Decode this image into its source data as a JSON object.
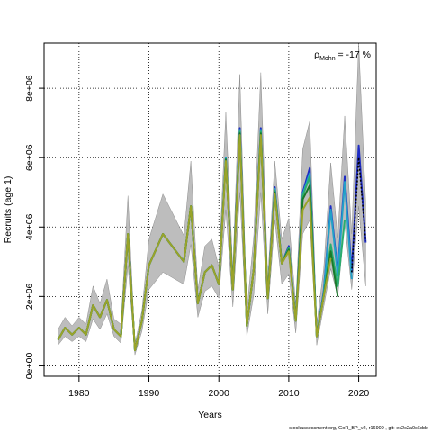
{
  "chart_data": {
    "type": "line",
    "title": "",
    "xlabel": "Years",
    "ylabel": "Recruits (age 1)",
    "xlim": [
      1975,
      2022.5
    ],
    "ylim": [
      -300000,
      9300000
    ],
    "x_ticks": [
      1980,
      1990,
      2000,
      2010,
      2020
    ],
    "y_ticks": [
      0,
      2000000,
      4000000,
      6000000,
      8000000
    ],
    "y_tick_labels": [
      "0e+00",
      "2e+06",
      "4e+06",
      "6e+06",
      "8e+06"
    ],
    "grid": true,
    "annotation": {
      "prefix": "ρ",
      "subscript": "Mohn",
      "suffix": " = -17 %"
    },
    "footer": "stockassessment.org, GoR_BP_v2, r16909 , git: ec2c2a0c6dde",
    "ci_band": {
      "years": [
        1977,
        1978,
        1979,
        1980,
        1981,
        1982,
        1983,
        1984,
        1985,
        1986,
        1987,
        1988,
        1989,
        1990,
        1992,
        1995,
        1996,
        1997,
        1998,
        1999,
        2000,
        2001,
        2002,
        2003,
        2004,
        2005,
        2006,
        2007,
        2008,
        2009,
        2010,
        2011,
        2012,
        2013,
        2014,
        2015,
        2016,
        2017,
        2018,
        2019,
        2020,
        2021
      ],
      "lower": [
        600000,
        850000,
        700000,
        850000,
        700000,
        1350000,
        1050000,
        1500000,
        850000,
        650000,
        2900000,
        320000,
        1000000,
        2200000,
        2700000,
        2350000,
        3500000,
        1400000,
        2150000,
        2300000,
        1950000,
        4500000,
        1700000,
        5000000,
        850000,
        2050000,
        5000000,
        1500000,
        4200000,
        2350000,
        2650000,
        950000,
        3800000,
        4200000,
        600000,
        1700000,
        2800000,
        2000000,
        4100000,
        2200000,
        4600000,
        2300000
      ],
      "upper": [
        1050000,
        1400000,
        1150000,
        1400000,
        1200000,
        2300000,
        1800000,
        2500000,
        1350000,
        1200000,
        4900000,
        620000,
        1600000,
        3650000,
        4950000,
        3750000,
        5900000,
        2200000,
        3450000,
        3650000,
        2850000,
        7300000,
        2750000,
        8400000,
        1550000,
        3750000,
        8450000,
        2500000,
        5900000,
        3650000,
        4250000,
        1750000,
        6250000,
        7050000,
        1200000,
        2800000,
        5850000,
        3700000,
        7200000,
        3800000,
        9300000,
        4700000
      ]
    },
    "series": [
      {
        "color": "#1f2cc4",
        "x": [
          1977,
          1978,
          1979,
          1980,
          1981,
          1982,
          1983,
          1984,
          1985,
          1986,
          1987,
          1988,
          1989,
          1990,
          1992,
          1995,
          1996,
          1997,
          1998,
          1999,
          2000,
          2001,
          2002,
          2003,
          2004,
          2005,
          2006,
          2007,
          2008,
          2009,
          2010,
          2011,
          2012,
          2013,
          2014,
          2015,
          2016,
          2017,
          2018,
          2019,
          2020,
          2021
        ],
        "y": [
          750000,
          1100000,
          900000,
          1100000,
          900000,
          1750000,
          1400000,
          1900000,
          1050000,
          850000,
          3800000,
          450000,
          1300000,
          2900000,
          3800000,
          3000000,
          4600000,
          1800000,
          2700000,
          2900000,
          2350000,
          6000000,
          2200000,
          6850000,
          1150000,
          2800000,
          6850000,
          1950000,
          5150000,
          2950000,
          3450000,
          1300000,
          5000000,
          5700000,
          850000,
          2150000,
          4600000,
          2700000,
          5450000,
          2700000,
          6350000,
          3550000
        ]
      },
      {
        "color": "#22a0c8",
        "x": [
          1977,
          1978,
          1979,
          1980,
          1981,
          1982,
          1983,
          1984,
          1985,
          1986,
          1987,
          1988,
          1989,
          1990,
          1992,
          1995,
          1996,
          1997,
          1998,
          1999,
          2000,
          2001,
          2002,
          2003,
          2004,
          2005,
          2006,
          2007,
          2008,
          2009,
          2010,
          2011,
          2012,
          2013,
          2014,
          2015,
          2016,
          2017,
          2018,
          2019
        ],
        "y": [
          750000,
          1100000,
          900000,
          1100000,
          900000,
          1750000,
          1400000,
          1900000,
          1050000,
          850000,
          3800000,
          450000,
          1300000,
          2900000,
          3800000,
          3000000,
          4600000,
          1800000,
          2700000,
          2900000,
          2350000,
          6000000,
          2200000,
          6800000,
          1150000,
          2800000,
          6800000,
          1950000,
          5100000,
          2950000,
          3400000,
          1300000,
          4950000,
          5550000,
          850000,
          2100000,
          4500000,
          2600000,
          5300000,
          2500000
        ]
      },
      {
        "color": "#2aae6e",
        "x": [
          1977,
          1978,
          1979,
          1980,
          1981,
          1982,
          1983,
          1984,
          1985,
          1986,
          1987,
          1988,
          1989,
          1990,
          1992,
          1995,
          1996,
          1997,
          1998,
          1999,
          2000,
          2001,
          2002,
          2003,
          2004,
          2005,
          2006,
          2007,
          2008,
          2009,
          2010,
          2011,
          2012,
          2013,
          2014,
          2015,
          2016,
          2017,
          2018
        ],
        "y": [
          750000,
          1100000,
          900000,
          1100000,
          900000,
          1750000,
          1400000,
          1900000,
          1050000,
          850000,
          3800000,
          450000,
          1300000,
          2900000,
          3800000,
          3000000,
          4600000,
          1800000,
          2700000,
          2900000,
          2350000,
          5950000,
          2200000,
          6750000,
          1150000,
          2800000,
          6750000,
          1950000,
          5050000,
          2950000,
          3400000,
          1300000,
          4900000,
          5450000,
          850000,
          2050000,
          3500000,
          2300000,
          4200000
        ]
      },
      {
        "color": "#1a7a2a",
        "x": [
          1977,
          1978,
          1979,
          1980,
          1981,
          1982,
          1983,
          1984,
          1985,
          1986,
          1987,
          1988,
          1989,
          1990,
          1992,
          1995,
          1996,
          1997,
          1998,
          1999,
          2000,
          2001,
          2002,
          2003,
          2004,
          2005,
          2006,
          2007,
          2008,
          2009,
          2010,
          2011,
          2012,
          2013,
          2014,
          2015,
          2016,
          2017
        ],
        "y": [
          750000,
          1100000,
          900000,
          1100000,
          900000,
          1750000,
          1400000,
          1900000,
          1050000,
          850000,
          3800000,
          450000,
          1300000,
          2900000,
          3800000,
          3000000,
          4600000,
          1800000,
          2700000,
          2900000,
          2350000,
          5950000,
          2200000,
          6700000,
          1150000,
          2800000,
          6700000,
          1950000,
          5000000,
          2950000,
          3350000,
          1300000,
          4800000,
          5200000,
          850000,
          2000000,
          3300000,
          2000000
        ]
      },
      {
        "color": "#9aa32a",
        "x": [
          1977,
          1978,
          1979,
          1980,
          1981,
          1982,
          1983,
          1984,
          1985,
          1986,
          1987,
          1988,
          1989,
          1990,
          1992,
          1995,
          1996,
          1997,
          1998,
          1999,
          2000,
          2001,
          2002,
          2003,
          2004,
          2005,
          2006,
          2007,
          2008,
          2009,
          2010,
          2011,
          2012,
          2013,
          2014,
          2015,
          2016
        ],
        "y": [
          750000,
          1100000,
          900000,
          1100000,
          900000,
          1750000,
          1400000,
          1900000,
          1050000,
          850000,
          3800000,
          450000,
          1300000,
          2900000,
          3800000,
          3000000,
          4600000,
          1800000,
          2700000,
          2900000,
          2350000,
          5900000,
          2200000,
          6650000,
          1150000,
          2800000,
          6650000,
          1950000,
          4950000,
          2950000,
          3300000,
          1300000,
          4500000,
          4850000,
          850000,
          2000000,
          3100000
        ]
      },
      {
        "color": "#000000",
        "dashed": true,
        "x": [
          2019,
          2020,
          2021
        ],
        "y": [
          2700000,
          6000000,
          3600000
        ]
      }
    ]
  }
}
